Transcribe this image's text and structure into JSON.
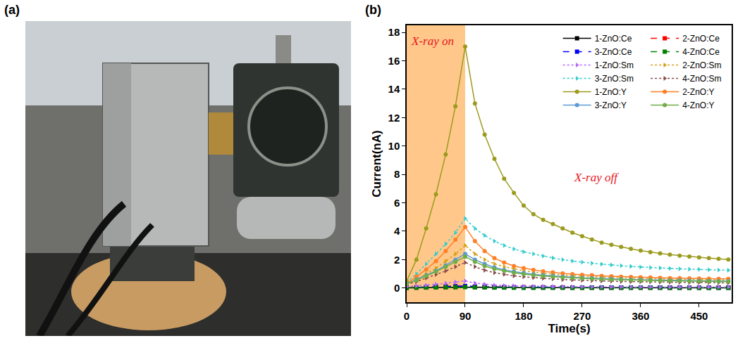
{
  "panel_labels": [
    "(a)",
    "(b)"
  ],
  "chart_data": {
    "type": "line",
    "x_label": "Time(s)",
    "y_label": "Current(nA)",
    "xlim": [
      0,
      500
    ],
    "xticks": [
      0,
      90,
      180,
      270,
      360,
      450
    ],
    "ylim": [
      -1,
      18.5
    ],
    "yticks": [
      0,
      2,
      4,
      6,
      8,
      10,
      12,
      14,
      16,
      18
    ],
    "grid": false,
    "legend": "top right",
    "shaded": {
      "x0": 0,
      "x1": 90,
      "color": "#ffc88a"
    },
    "annotations": [
      {
        "text": "X-ray on",
        "x": 4,
        "y": 17.4
      },
      {
        "text": "X-ray off",
        "x": 255,
        "y": 7.8
      }
    ],
    "x": [
      0,
      15,
      30,
      45,
      60,
      75,
      90,
      105,
      120,
      135,
      150,
      165,
      180,
      195,
      210,
      225,
      240,
      255,
      270,
      285,
      300,
      315,
      330,
      345,
      360,
      375,
      390,
      405,
      420,
      435,
      450,
      465,
      480,
      495
    ],
    "series": [
      {
        "name": "1-ZnO:Ce",
        "color": "#000000",
        "marker": "square",
        "line_style": "solid",
        "values": [
          0.02,
          0.03,
          0.04,
          0.05,
          0.06,
          0.07,
          0.08,
          0.06,
          0.05,
          0.04,
          0.04,
          0.03,
          0.03,
          0.03,
          0.03,
          0.03,
          0.03,
          0.02,
          0.02,
          0.02,
          0.02,
          0.02,
          0.02,
          0.02,
          0.02,
          0.02,
          0.02,
          0.02,
          0.02,
          0.02,
          0.02,
          0.02,
          0.02,
          0.02
        ]
      },
      {
        "name": "2-ZnO:Ce",
        "color": "#ff0000",
        "marker": "square",
        "line_style": "dash",
        "values": [
          0.03,
          0.05,
          0.07,
          0.09,
          0.11,
          0.13,
          0.15,
          0.11,
          0.09,
          0.08,
          0.07,
          0.06,
          0.06,
          0.05,
          0.05,
          0.05,
          0.05,
          0.04,
          0.04,
          0.04,
          0.04,
          0.04,
          0.04,
          0.04,
          0.04,
          0.04,
          0.04,
          0.04,
          0.04,
          0.04,
          0.04,
          0.04,
          0.04,
          0.04
        ]
      },
      {
        "name": "3-ZnO:Ce",
        "color": "#0000ff",
        "marker": "square",
        "line_style": "dash",
        "values": [
          0.02,
          0.04,
          0.06,
          0.08,
          0.1,
          0.12,
          0.14,
          0.1,
          0.08,
          0.07,
          0.06,
          0.06,
          0.05,
          0.05,
          0.05,
          0.04,
          0.04,
          0.04,
          0.04,
          0.04,
          0.04,
          0.04,
          0.04,
          0.04,
          0.04,
          0.04,
          0.04,
          0.03,
          0.03,
          0.03,
          0.03,
          0.03,
          0.03,
          0.03
        ]
      },
      {
        "name": "4-ZnO:Ce",
        "color": "#008000",
        "marker": "square",
        "line_style": "dash",
        "values": [
          0.01,
          0.02,
          0.03,
          0.04,
          0.05,
          0.06,
          0.07,
          0.05,
          0.04,
          0.03,
          0.03,
          0.03,
          0.02,
          0.02,
          0.02,
          0.02,
          0.02,
          0.02,
          0.02,
          0.02,
          0.02,
          0.02,
          0.02,
          0.02,
          0.02,
          0.02,
          0.02,
          0.01,
          0.01,
          0.01,
          0.01,
          0.01,
          0.01,
          0.01
        ]
      },
      {
        "name": "1-ZnO:Sm",
        "color": "#b266ff",
        "marker": "triangle-right",
        "line_style": "dot",
        "values": [
          0.1,
          0.15,
          0.2,
          0.27,
          0.34,
          0.42,
          0.5,
          0.35,
          0.26,
          0.2,
          0.17,
          0.15,
          0.13,
          0.12,
          0.11,
          0.1,
          0.1,
          0.09,
          0.09,
          0.08,
          0.08,
          0.08,
          0.07,
          0.07,
          0.07,
          0.07,
          0.06,
          0.06,
          0.06,
          0.06,
          0.06,
          0.06,
          0.06,
          0.06
        ]
      },
      {
        "name": "2-ZnO:Sm",
        "color": "#d4a017",
        "marker": "triangle-right",
        "line_style": "dot",
        "values": [
          0.3,
          0.6,
          1.0,
          1.4,
          1.9,
          2.4,
          3.0,
          2.4,
          2.0,
          1.7,
          1.5,
          1.35,
          1.22,
          1.12,
          1.04,
          0.98,
          0.92,
          0.87,
          0.83,
          0.8,
          0.77,
          0.74,
          0.72,
          0.7,
          0.68,
          0.66,
          0.64,
          0.63,
          0.62,
          0.61,
          0.6,
          0.59,
          0.58,
          0.57
        ]
      },
      {
        "name": "3-ZnO:Sm",
        "color": "#33cccc",
        "marker": "triangle-right",
        "line_style": "dot",
        "values": [
          0.4,
          1.0,
          1.7,
          2.4,
          3.1,
          3.9,
          4.9,
          4.2,
          3.7,
          3.3,
          3.0,
          2.75,
          2.55,
          2.4,
          2.25,
          2.12,
          2.0,
          1.9,
          1.82,
          1.75,
          1.68,
          1.62,
          1.57,
          1.52,
          1.48,
          1.44,
          1.41,
          1.38,
          1.35,
          1.33,
          1.31,
          1.29,
          1.27,
          1.25
        ]
      },
      {
        "name": "4-ZnO:Sm",
        "color": "#8b4a4a",
        "marker": "triangle-right",
        "line_style": "dot",
        "values": [
          0.25,
          0.45,
          0.7,
          0.95,
          1.2,
          1.5,
          1.8,
          1.5,
          1.25,
          1.08,
          0.96,
          0.86,
          0.79,
          0.73,
          0.68,
          0.64,
          0.6,
          0.57,
          0.54,
          0.52,
          0.5,
          0.48,
          0.46,
          0.45,
          0.44,
          0.43,
          0.42,
          0.41,
          0.4,
          0.39,
          0.38,
          0.38,
          0.37,
          0.36
        ]
      },
      {
        "name": "1-ZnO:Y",
        "color": "#9b9b1f",
        "marker": "circle",
        "line_style": "solid",
        "values": [
          0.5,
          2.0,
          4.2,
          6.6,
          9.4,
          12.8,
          17.0,
          13.0,
          10.8,
          9.1,
          7.7,
          6.7,
          5.8,
          5.2,
          4.8,
          4.5,
          4.2,
          3.9,
          3.65,
          3.42,
          3.2,
          3.05,
          2.9,
          2.76,
          2.64,
          2.53,
          2.44,
          2.35,
          2.28,
          2.22,
          2.16,
          2.1,
          2.06,
          2.01
        ]
      },
      {
        "name": "2-ZnO:Y",
        "color": "#ff7f27",
        "marker": "circle",
        "line_style": "solid",
        "values": [
          0.3,
          0.8,
          1.3,
          1.9,
          2.6,
          3.4,
          4.3,
          3.3,
          2.6,
          2.1,
          1.8,
          1.55,
          1.4,
          1.28,
          1.18,
          1.1,
          1.03,
          0.98,
          0.93,
          0.9,
          0.86,
          0.83,
          0.8,
          0.78,
          0.76,
          0.74,
          0.72,
          0.7,
          0.69,
          0.68,
          0.67,
          0.66,
          0.65,
          0.64
        ]
      },
      {
        "name": "3-ZnO:Y",
        "color": "#5b9bd5",
        "marker": "circle",
        "line_style": "solid",
        "values": [
          0.3,
          0.6,
          0.9,
          1.2,
          1.6,
          2.0,
          2.4,
          2.0,
          1.7,
          1.45,
          1.28,
          1.15,
          1.05,
          0.97,
          0.9,
          0.85,
          0.8,
          0.76,
          0.72,
          0.69,
          0.66,
          0.64,
          0.62,
          0.6,
          0.58,
          0.56,
          0.55,
          0.54,
          0.53,
          0.52,
          0.51,
          0.5,
          0.49,
          0.48
        ]
      },
      {
        "name": "4-ZnO:Y",
        "color": "#70ad47",
        "marker": "circle",
        "line_style": "solid",
        "values": [
          0.3,
          0.55,
          0.85,
          1.15,
          1.5,
          1.85,
          2.2,
          1.85,
          1.55,
          1.35,
          1.2,
          1.08,
          0.98,
          0.9,
          0.84,
          0.79,
          0.75,
          0.71,
          0.68,
          0.65,
          0.62,
          0.6,
          0.58,
          0.56,
          0.54,
          0.53,
          0.52,
          0.51,
          0.5,
          0.49,
          0.48,
          0.47,
          0.46,
          0.45
        ]
      }
    ]
  }
}
